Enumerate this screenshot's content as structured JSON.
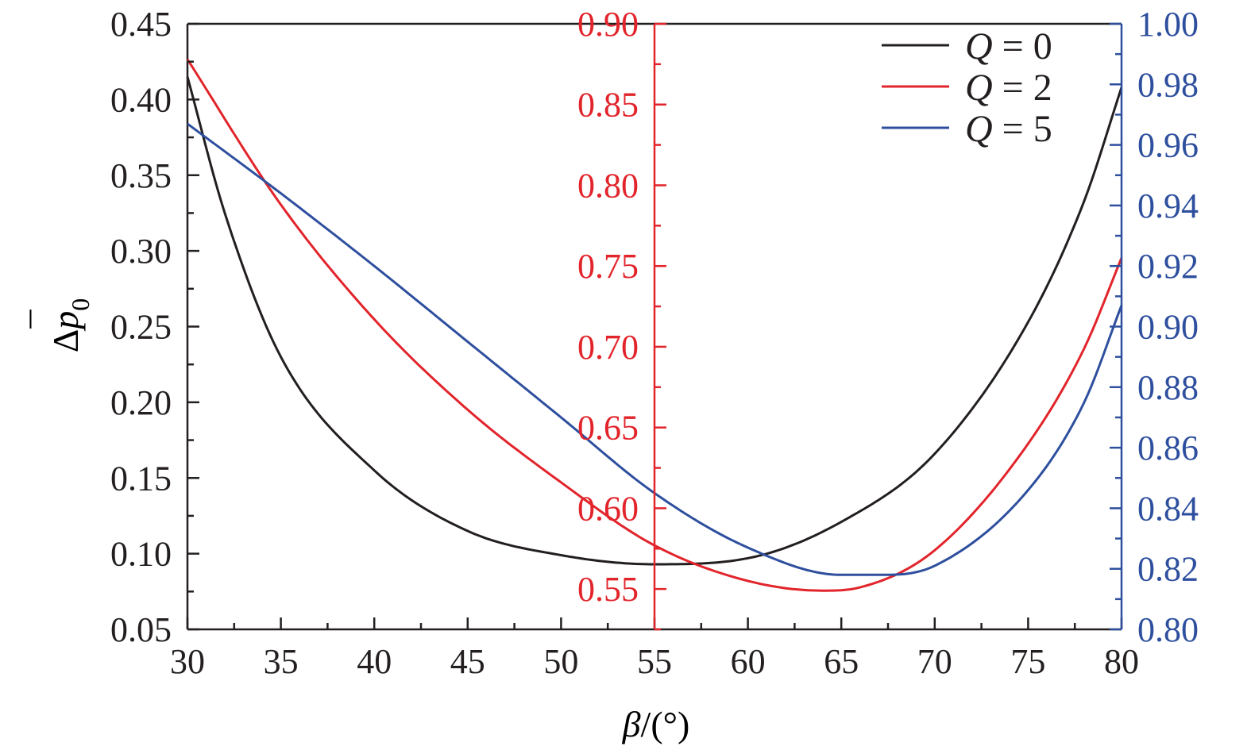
{
  "chart_data": {
    "type": "line",
    "x_axis": {
      "label_symbol": "β",
      "label_unit": "/(°)",
      "range": [
        30,
        80
      ],
      "ticks": [
        30,
        35,
        40,
        45,
        50,
        55,
        60,
        65,
        70,
        75,
        80
      ],
      "tick_labels": [
        "30",
        "35",
        "40",
        "45",
        "50",
        "55",
        "60",
        "65",
        "70",
        "75",
        "80"
      ]
    },
    "y_axes": {
      "left": {
        "label": "Δp̄₀",
        "label_main": "Δ",
        "label_p": "p",
        "label_bar": "¯",
        "label_sub": "0",
        "range": [
          0.05,
          0.45
        ],
        "ticks": [
          0.05,
          0.1,
          0.15,
          0.2,
          0.25,
          0.3,
          0.35,
          0.4,
          0.45
        ],
        "tick_labels": [
          "0.05",
          "0.10",
          "0.15",
          "0.20",
          "0.25",
          "0.30",
          "0.35",
          "0.40",
          "0.45"
        ],
        "color": "#231f20",
        "series": "Q = 0"
      },
      "middle": {
        "position_x": 55,
        "range": [
          0.525,
          0.9
        ],
        "ticks": [
          0.55,
          0.6,
          0.65,
          0.7,
          0.75,
          0.8,
          0.85,
          0.9
        ],
        "tick_labels": [
          "0.55",
          "0.60",
          "0.65",
          "0.70",
          "0.75",
          "0.80",
          "0.85",
          "0.90"
        ],
        "color": "#e2242b",
        "series": "Q = 2"
      },
      "right": {
        "range": [
          0.8,
          1.0
        ],
        "ticks": [
          0.8,
          0.82,
          0.84,
          0.86,
          0.88,
          0.9,
          0.92,
          0.94,
          0.96,
          0.98,
          1.0
        ],
        "tick_labels": [
          "0.80",
          "0.82",
          "0.84",
          "0.86",
          "0.88",
          "0.90",
          "0.92",
          "0.94",
          "0.96",
          "0.98",
          "1.00"
        ],
        "color": "#2e4f9e",
        "series": "Q = 5"
      }
    },
    "series": [
      {
        "name": "Q = 0",
        "symbol": "Q",
        "value": "0",
        "axis": "left",
        "color": "#231f20",
        "x": [
          30,
          32,
          35,
          40,
          45,
          50,
          55,
          60,
          65,
          70,
          75,
          78,
          80
        ],
        "y": [
          0.415,
          0.325,
          0.23,
          0.155,
          0.115,
          0.099,
          0.093,
          0.097,
          0.121,
          0.166,
          0.253,
          0.333,
          0.408
        ]
      },
      {
        "name": "Q = 2",
        "symbol": "Q",
        "value": "2",
        "axis": "middle",
        "color": "#e2242b",
        "x": [
          30,
          35,
          40,
          45,
          50,
          55,
          60,
          64,
          66,
          70,
          75,
          78,
          80
        ],
        "y": [
          0.878,
          0.788,
          0.717,
          0.661,
          0.616,
          0.577,
          0.555,
          0.549,
          0.551,
          0.574,
          0.64,
          0.699,
          0.755
        ]
      },
      {
        "name": "Q = 5",
        "symbol": "Q",
        "value": "5",
        "axis": "right",
        "color": "#2e4f9e",
        "x": [
          30,
          35,
          40,
          45,
          50,
          55,
          60,
          65,
          67,
          70,
          75,
          78,
          80
        ],
        "y": [
          0.967,
          0.944,
          0.92,
          0.895,
          0.87,
          0.845,
          0.827,
          0.818,
          0.818,
          0.821,
          0.846,
          0.875,
          0.907
        ]
      }
    ],
    "legend": {
      "placement": "top-right"
    },
    "grid": false
  }
}
